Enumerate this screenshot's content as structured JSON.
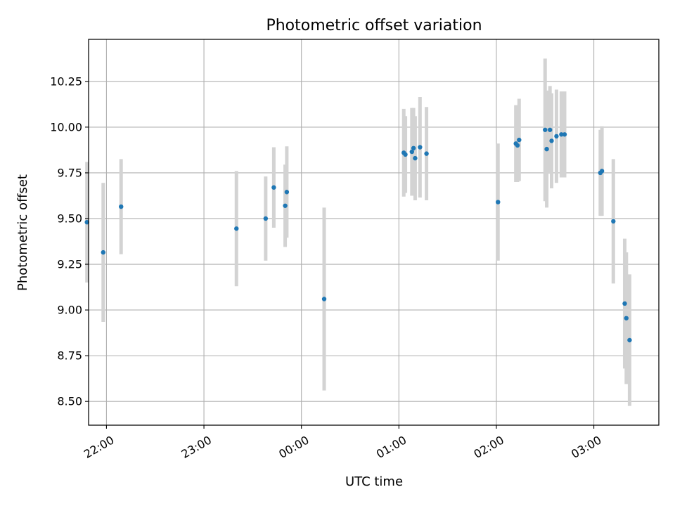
{
  "chart_data": {
    "type": "scatter",
    "title": "Photometric offset variation",
    "xlabel": "UTC time",
    "ylabel": "Photometric offset",
    "x_tick_labels": [
      "22:00",
      "23:00",
      "00:00",
      "01:00",
      "02:00",
      "03:00"
    ],
    "x_ticks": [
      "22:00",
      "23:00",
      "00:00",
      "01:00",
      "02:00",
      "03:00"
    ],
    "x_range": [
      "21:49",
      "27:40"
    ],
    "y_ticks": [
      8.5,
      8.75,
      9.0,
      9.25,
      9.5,
      9.75,
      10.0,
      10.25
    ],
    "y_tick_labels": [
      "8.50",
      "8.75",
      "9.00",
      "9.25",
      "9.50",
      "9.75",
      "10.00",
      "10.25"
    ],
    "ylim": [
      8.37,
      10.48
    ],
    "grid": true,
    "colors": {
      "point": "#1f77b4",
      "errorbar": "#d3d3d3",
      "grid": "#b0b0b0"
    },
    "series": [
      {
        "points": [
          {
            "x": "21:48",
            "y": 9.48,
            "yerr": 0.33
          },
          {
            "x": "21:58",
            "y": 9.315,
            "yerr": 0.38
          },
          {
            "x": "22:09",
            "y": 9.565,
            "yerr": 0.26
          },
          {
            "x": "23:20",
            "y": 9.445,
            "yerr": 0.315
          },
          {
            "x": "23:38",
            "y": 9.5,
            "yerr": 0.23
          },
          {
            "x": "23:43",
            "y": 9.67,
            "yerr": 0.22
          },
          {
            "x": "23:50",
            "y": 9.57,
            "yerr": 0.225
          },
          {
            "x": "23:51",
            "y": 9.645,
            "yerr": 0.25
          },
          {
            "x": "00:14",
            "y": 9.06,
            "yerr": 0.5
          },
          {
            "x": "01:03",
            "y": 9.86,
            "yerr": 0.24
          },
          {
            "x": "01:04",
            "y": 9.85,
            "yerr": 0.21
          },
          {
            "x": "01:08",
            "y": 9.865,
            "yerr": 0.24
          },
          {
            "x": "01:09",
            "y": 9.885,
            "yerr": 0.22
          },
          {
            "x": "01:10",
            "y": 9.83,
            "yerr": 0.23
          },
          {
            "x": "01:13",
            "y": 9.89,
            "yerr": 0.275
          },
          {
            "x": "01:17",
            "y": 9.855,
            "yerr": 0.255
          },
          {
            "x": "02:01",
            "y": 9.59,
            "yerr": 0.32
          },
          {
            "x": "02:12",
            "y": 9.91,
            "yerr": 0.21
          },
          {
            "x": "02:13",
            "y": 9.9,
            "yerr": 0.2
          },
          {
            "x": "02:14",
            "y": 9.93,
            "yerr": 0.225
          },
          {
            "x": "02:30",
            "y": 9.985,
            "yerr": 0.39
          },
          {
            "x": "02:31",
            "y": 9.88,
            "yerr": 0.32
          },
          {
            "x": "02:33",
            "y": 9.985,
            "yerr": 0.24
          },
          {
            "x": "02:34",
            "y": 9.925,
            "yerr": 0.26
          },
          {
            "x": "02:37",
            "y": 9.95,
            "yerr": 0.255
          },
          {
            "x": "02:40",
            "y": 9.96,
            "yerr": 0.235
          },
          {
            "x": "02:42",
            "y": 9.96,
            "yerr": 0.235
          },
          {
            "x": "03:04",
            "y": 9.75,
            "yerr": 0.235
          },
          {
            "x": "03:05",
            "y": 9.76,
            "yerr": 0.245
          },
          {
            "x": "03:12",
            "y": 9.485,
            "yerr": 0.34
          },
          {
            "x": "03:19",
            "y": 9.035,
            "yerr": 0.355
          },
          {
            "x": "03:20",
            "y": 8.955,
            "yerr": 0.36
          },
          {
            "x": "03:22",
            "y": 8.835,
            "yerr": 0.36
          }
        ]
      }
    ]
  }
}
